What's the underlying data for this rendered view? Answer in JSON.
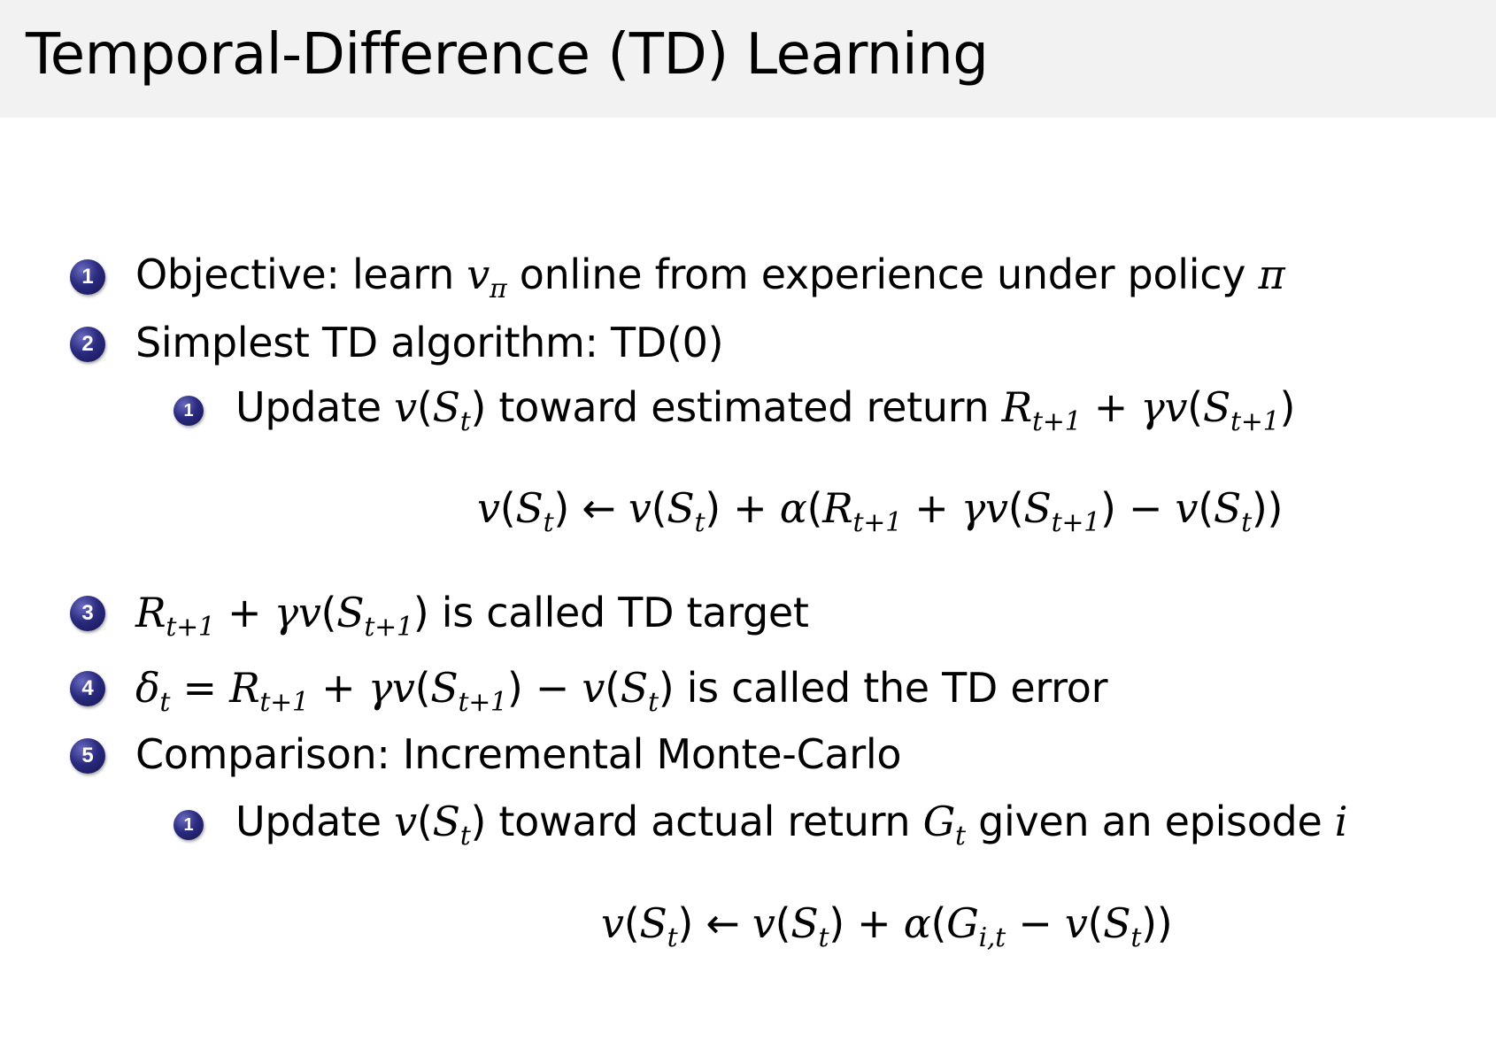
{
  "title": "Temporal-Difference (TD) Learning",
  "bullets": [
    "1",
    "2",
    "1",
    "3",
    "4",
    "5",
    "1"
  ],
  "lines": {
    "item1": [
      [
        "Objective: learn ",
        ""
      ],
      [
        "v",
        "i"
      ],
      [
        "π",
        "s"
      ],
      [
        " online from experience under policy ",
        ""
      ],
      [
        "π",
        "i"
      ]
    ],
    "item2": [
      [
        "Simplest TD algorithm: TD(0)",
        ""
      ]
    ],
    "item2_sub1": [
      [
        "Update ",
        ""
      ],
      [
        "v",
        "i"
      ],
      [
        "(",
        ""
      ],
      [
        "S",
        "i"
      ],
      [
        "t",
        "s"
      ],
      [
        ") toward estimated return ",
        ""
      ],
      [
        "R",
        "i"
      ],
      [
        "t+1",
        "s"
      ],
      [
        " + ",
        ""
      ],
      [
        "γv",
        "i"
      ],
      [
        "(",
        ""
      ],
      [
        "S",
        "i"
      ],
      [
        "t+1",
        "s"
      ],
      [
        ")",
        ""
      ]
    ],
    "eq1": [
      [
        "v",
        "i"
      ],
      [
        "(",
        ""
      ],
      [
        "S",
        "i"
      ],
      [
        "t",
        "s"
      ],
      [
        ") ← ",
        ""
      ],
      [
        "v",
        "i"
      ],
      [
        "(",
        ""
      ],
      [
        "S",
        "i"
      ],
      [
        "t",
        "s"
      ],
      [
        ") + ",
        ""
      ],
      [
        "α",
        "i"
      ],
      [
        "(",
        ""
      ],
      [
        "R",
        "i"
      ],
      [
        "t+1",
        "s"
      ],
      [
        " + ",
        ""
      ],
      [
        "γv",
        "i"
      ],
      [
        "(",
        ""
      ],
      [
        "S",
        "i"
      ],
      [
        "t+1",
        "s"
      ],
      [
        ") − ",
        ""
      ],
      [
        "v",
        "i"
      ],
      [
        "(",
        ""
      ],
      [
        "S",
        "i"
      ],
      [
        "t",
        "s"
      ],
      [
        "))",
        ""
      ]
    ],
    "item3": [
      [
        "R",
        "i"
      ],
      [
        "t+1",
        "s"
      ],
      [
        " + ",
        ""
      ],
      [
        "γv",
        "i"
      ],
      [
        "(",
        ""
      ],
      [
        "S",
        "i"
      ],
      [
        "t+1",
        "s"
      ],
      [
        ") is called TD target",
        ""
      ]
    ],
    "item4": [
      [
        "δ",
        "i"
      ],
      [
        "t",
        "s"
      ],
      [
        " = ",
        ""
      ],
      [
        "R",
        "i"
      ],
      [
        "t+1",
        "s"
      ],
      [
        " + ",
        ""
      ],
      [
        "γv",
        "i"
      ],
      [
        "(",
        ""
      ],
      [
        "S",
        "i"
      ],
      [
        "t+1",
        "s"
      ],
      [
        ") − ",
        ""
      ],
      [
        "v",
        "i"
      ],
      [
        "(",
        ""
      ],
      [
        "S",
        "i"
      ],
      [
        "t",
        "s"
      ],
      [
        ") is called the TD error",
        ""
      ]
    ],
    "item5": [
      [
        "Comparison: Incremental Monte-Carlo",
        ""
      ]
    ],
    "item5_sub1": [
      [
        "Update ",
        ""
      ],
      [
        "v",
        "i"
      ],
      [
        "(",
        ""
      ],
      [
        "S",
        "i"
      ],
      [
        "t",
        "s"
      ],
      [
        ") toward actual return ",
        ""
      ],
      [
        "G",
        "i"
      ],
      [
        "t",
        "s"
      ],
      [
        " given an episode ",
        ""
      ],
      [
        "i",
        "i"
      ]
    ],
    "eq2": [
      [
        "v",
        "i"
      ],
      [
        "(",
        ""
      ],
      [
        "S",
        "i"
      ],
      [
        "t",
        "s"
      ],
      [
        ") ← ",
        ""
      ],
      [
        "v",
        "i"
      ],
      [
        "(",
        ""
      ],
      [
        "S",
        "i"
      ],
      [
        "t",
        "s"
      ],
      [
        ") + ",
        ""
      ],
      [
        "α",
        "i"
      ],
      [
        "(",
        ""
      ],
      [
        "G",
        "i"
      ],
      [
        "i,t",
        "s"
      ],
      [
        " − ",
        ""
      ],
      [
        "v",
        "i"
      ],
      [
        "(",
        ""
      ],
      [
        "S",
        "i"
      ],
      [
        "t",
        "s"
      ],
      [
        "))",
        ""
      ]
    ]
  },
  "colors": {
    "title_bar": "#f2f2f2",
    "bullet": "#2b2b80"
  }
}
